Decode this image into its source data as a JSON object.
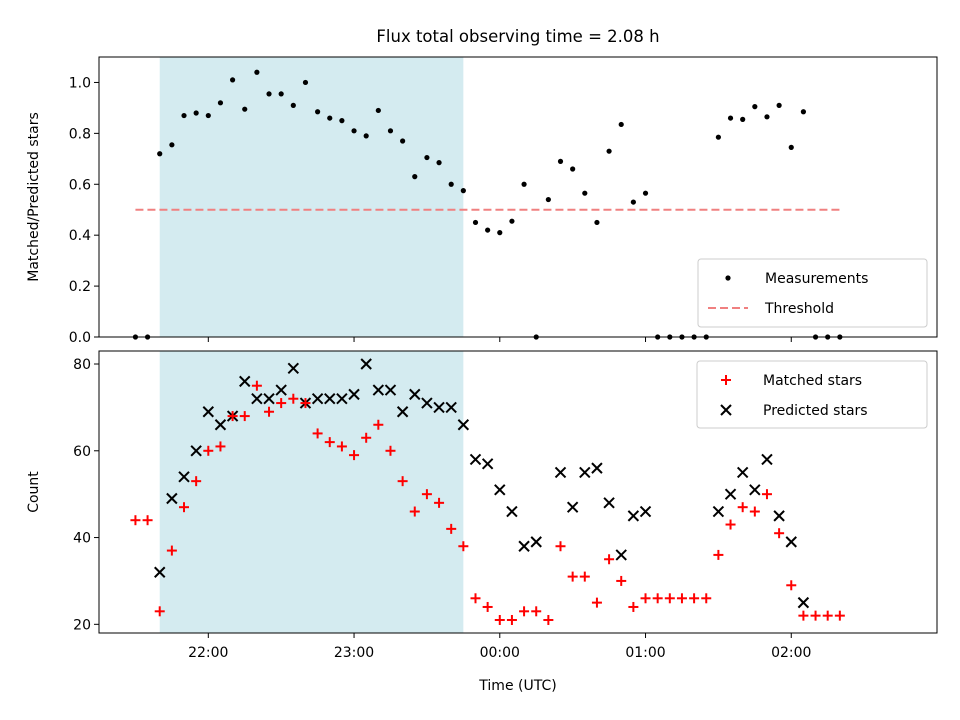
{
  "title": "Flux total observing time = 2.08 h",
  "xlabel": "Time (UTC)",
  "colors": {
    "shade": "#d4ebf0",
    "threshold": "#f08080",
    "matched": "#ff0000",
    "predicted": "#000000",
    "measurement": "#000000"
  },
  "chart_data": [
    {
      "type": "scatter",
      "ylabel": "Matched/Predicted stars",
      "ylim": [
        0,
        1.1
      ],
      "yticks": [
        0.0,
        0.2,
        0.4,
        0.6,
        0.8,
        1.0
      ],
      "ytick_labels": [
        "0.0",
        "0.2",
        "0.4",
        "0.6",
        "0.8",
        "1.0"
      ],
      "xlim": [
        "21:15",
        "03:00"
      ],
      "xticks": [
        "22:00",
        "23:00",
        "00:00",
        "01:00",
        "02:00"
      ],
      "shaded_interval": [
        "21:40",
        "23:45"
      ],
      "threshold": {
        "value": 0.5,
        "x_range": [
          "21:30",
          "02:20"
        ]
      },
      "legend": {
        "position": "lower-right",
        "entries": [
          "Measurements",
          "Threshold"
        ]
      },
      "series": [
        {
          "name": "Measurements",
          "marker": "dot",
          "x": [
            "21:30",
            "21:35",
            "21:40",
            "21:45",
            "21:50",
            "21:55",
            "22:00",
            "22:05",
            "22:10",
            "22:15",
            "22:20",
            "22:25",
            "22:30",
            "22:35",
            "22:40",
            "22:45",
            "22:50",
            "22:55",
            "23:00",
            "23:05",
            "23:10",
            "23:15",
            "23:20",
            "23:25",
            "23:30",
            "23:35",
            "23:40",
            "23:45",
            "23:50",
            "23:55",
            "00:00",
            "00:05",
            "00:10",
            "00:15",
            "00:20",
            "00:25",
            "00:30",
            "00:35",
            "00:40",
            "00:45",
            "00:50",
            "00:55",
            "01:00",
            "01:05",
            "01:10",
            "01:15",
            "01:20",
            "01:25",
            "01:30",
            "01:35",
            "01:40",
            "01:45",
            "01:50",
            "01:55",
            "02:00",
            "02:05",
            "02:10",
            "02:15",
            "02:20"
          ],
          "y": [
            0.0,
            0.0,
            0.72,
            0.755,
            0.87,
            0.88,
            0.87,
            0.92,
            1.01,
            0.895,
            1.04,
            0.955,
            0.955,
            0.91,
            1.0,
            0.885,
            0.86,
            0.85,
            0.81,
            0.79,
            0.89,
            0.81,
            0.77,
            0.63,
            0.705,
            0.685,
            0.6,
            0.575,
            0.45,
            0.42,
            0.41,
            0.455,
            0.6,
            0.0,
            0.54,
            0.69,
            0.66,
            0.565,
            0.45,
            0.73,
            0.835,
            0.53,
            0.565,
            0.0,
            0.0,
            0.0,
            0.0,
            0.0,
            0.785,
            0.86,
            0.855,
            0.905,
            0.865,
            0.91,
            0.745,
            0.885,
            0.0,
            0.0,
            0.0
          ]
        }
      ]
    },
    {
      "type": "scatter",
      "ylabel": "Count",
      "ylim": [
        18,
        83
      ],
      "yticks": [
        20,
        40,
        60,
        80
      ],
      "ytick_labels": [
        "20",
        "40",
        "60",
        "80"
      ],
      "xlim": [
        "21:15",
        "03:00"
      ],
      "xticks": [
        "22:00",
        "23:00",
        "00:00",
        "01:00",
        "02:00"
      ],
      "xtick_labels": [
        "22:00",
        "23:00",
        "00:00",
        "01:00",
        "02:00"
      ],
      "shaded_interval": [
        "21:40",
        "23:45"
      ],
      "legend": {
        "position": "upper-right",
        "entries": [
          "Matched stars",
          "Predicted stars"
        ]
      },
      "series": [
        {
          "name": "Matched stars",
          "marker": "plus",
          "x": [
            "21:30",
            "21:35",
            "21:40",
            "21:45",
            "21:50",
            "21:55",
            "22:00",
            "22:05",
            "22:10",
            "22:15",
            "22:20",
            "22:25",
            "22:30",
            "22:35",
            "22:40",
            "22:45",
            "22:50",
            "22:55",
            "23:00",
            "23:05",
            "23:10",
            "23:15",
            "23:20",
            "23:25",
            "23:30",
            "23:35",
            "23:40",
            "23:45",
            "23:50",
            "23:55",
            "00:00",
            "00:05",
            "00:10",
            "00:15",
            "00:20",
            "00:25",
            "00:30",
            "00:35",
            "00:40",
            "00:45",
            "00:50",
            "00:55",
            "01:00",
            "01:05",
            "01:10",
            "01:15",
            "01:20",
            "01:25",
            "01:30",
            "01:35",
            "01:40",
            "01:45",
            "01:50",
            "01:55",
            "02:00",
            "02:05",
            "02:10",
            "02:15",
            "02:20"
          ],
          "y": [
            44,
            44,
            23,
            37,
            47,
            53,
            60,
            61,
            68,
            68,
            75,
            69,
            71,
            72,
            71,
            64,
            62,
            61,
            59,
            63,
            66,
            60,
            53,
            46,
            50,
            48,
            42,
            38,
            26,
            24,
            21,
            21,
            23,
            23,
            21,
            38,
            31,
            31,
            25,
            35,
            30,
            24,
            26,
            26,
            26,
            26,
            26,
            26,
            36,
            43,
            47,
            46,
            50,
            41,
            29,
            22,
            22,
            22,
            22
          ]
        },
        {
          "name": "Predicted stars",
          "marker": "cross",
          "x": [
            "21:40",
            "21:45",
            "21:50",
            "21:55",
            "22:00",
            "22:05",
            "22:10",
            "22:15",
            "22:20",
            "22:25",
            "22:30",
            "22:35",
            "22:40",
            "22:45",
            "22:50",
            "22:55",
            "23:00",
            "23:05",
            "23:10",
            "23:15",
            "23:20",
            "23:25",
            "23:30",
            "23:35",
            "23:40",
            "23:45",
            "23:50",
            "23:55",
            "00:00",
            "00:05",
            "00:10",
            "00:15",
            "00:25",
            "00:30",
            "00:35",
            "00:40",
            "00:45",
            "00:50",
            "00:55",
            "01:00",
            "01:30",
            "01:35",
            "01:40",
            "01:45",
            "01:50",
            "01:55",
            "02:00",
            "02:05"
          ],
          "y": [
            32,
            49,
            54,
            60,
            69,
            66,
            68,
            76,
            72,
            72,
            74,
            79,
            71,
            72,
            72,
            72,
            73,
            80,
            74,
            74,
            69,
            73,
            71,
            70,
            70,
            66,
            58,
            57,
            51,
            46,
            38,
            39,
            55,
            47,
            55,
            56,
            48,
            36,
            45,
            46,
            46,
            50,
            55,
            51,
            58,
            45,
            39,
            25
          ]
        }
      ]
    }
  ]
}
